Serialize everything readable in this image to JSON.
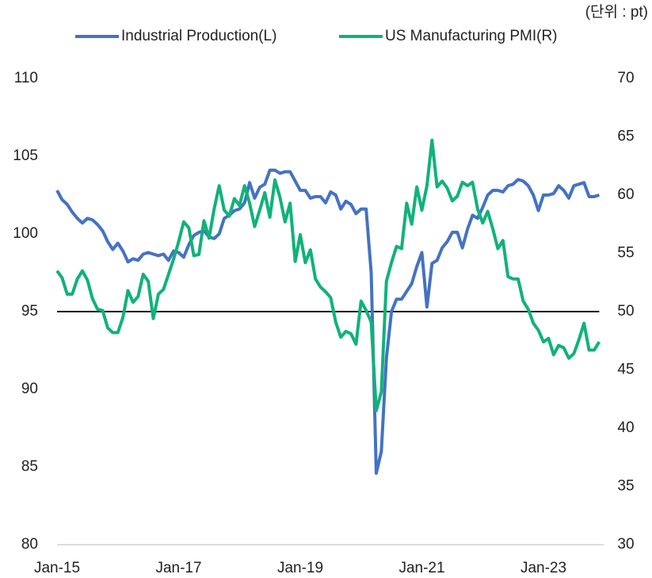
{
  "chart_data": {
    "type": "line",
    "annotation": "(단위 : pt)",
    "categories": [
      "Jan-15",
      null,
      null,
      null,
      null,
      null,
      null,
      null,
      null,
      null,
      null,
      null,
      null,
      null,
      null,
      null,
      null,
      null,
      null,
      null,
      null,
      null,
      null,
      null,
      "Jan-17",
      null,
      null,
      null,
      null,
      null,
      null,
      null,
      null,
      null,
      null,
      null,
      null,
      null,
      null,
      null,
      null,
      null,
      null,
      null,
      null,
      null,
      null,
      null,
      "Jan-19",
      null,
      null,
      null,
      null,
      null,
      null,
      null,
      null,
      null,
      null,
      null,
      null,
      null,
      null,
      null,
      null,
      null,
      null,
      null,
      null,
      null,
      null,
      null,
      "Jan-21",
      null,
      null,
      null,
      null,
      null,
      null,
      null,
      null,
      null,
      null,
      null,
      null,
      null,
      null,
      null,
      null,
      null,
      null,
      null,
      null,
      null,
      null,
      null,
      "Jan-23",
      null,
      null,
      null,
      null,
      null,
      null,
      null,
      null,
      null,
      null,
      null
    ],
    "series": [
      {
        "name": "Industrial Production(L)",
        "color": "#4472c4",
        "axis": "y",
        "values": [
          102.8,
          102.2,
          101.9,
          101.4,
          101.0,
          100.7,
          101.0,
          100.9,
          100.6,
          100.2,
          99.5,
          99.0,
          99.4,
          98.9,
          98.2,
          98.4,
          98.3,
          98.7,
          98.8,
          98.7,
          98.6,
          98.7,
          98.3,
          98.9,
          98.8,
          98.5,
          99.3,
          99.9,
          100.1,
          100.2,
          99.8,
          99.7,
          100.0,
          101.0,
          101.2,
          101.5,
          101.6,
          102.0,
          103.3,
          102.3,
          103.0,
          103.2,
          104.1,
          104.1,
          103.9,
          104.0,
          104.0,
          103.4,
          102.8,
          102.8,
          102.3,
          102.4,
          102.4,
          102.0,
          102.7,
          102.5,
          101.6,
          102.1,
          101.9,
          101.3,
          101.6,
          101.6,
          97.5,
          84.6,
          86.0,
          92.0,
          95.0,
          95.8,
          95.8,
          96.3,
          96.8,
          97.9,
          98.8,
          95.3,
          98.1,
          98.3,
          99.1,
          99.5,
          100.1,
          100.1,
          99.1,
          100.3,
          101.2,
          101.0,
          101.7,
          102.5,
          102.8,
          102.8,
          102.7,
          103.1,
          103.2,
          103.5,
          103.4,
          103.1,
          102.5,
          101.5,
          102.5,
          102.5,
          102.6,
          103.1,
          102.8,
          102.3,
          103.1,
          103.2,
          103.3,
          102.4,
          102.4,
          102.5
        ]
      },
      {
        "name": "US Manufacturing PMI(R)",
        "color": "#10b27a",
        "axis": "y2",
        "values": [
          53.5,
          52.9,
          51.5,
          51.5,
          52.8,
          53.5,
          52.7,
          51.1,
          50.2,
          50.1,
          48.6,
          48.2,
          48.2,
          49.5,
          51.8,
          50.8,
          51.3,
          53.2,
          52.6,
          49.4,
          51.5,
          51.9,
          53.2,
          54.5,
          56.0,
          57.7,
          57.2,
          54.8,
          54.9,
          57.8,
          56.3,
          58.8,
          60.8,
          58.7,
          58.2,
          59.7,
          59.1,
          60.8,
          59.3,
          57.3,
          58.7,
          60.2,
          58.1,
          61.3,
          59.8,
          57.7,
          59.3,
          54.3,
          56.6,
          54.2,
          55.3,
          52.8,
          52.1,
          51.7,
          51.2,
          49.1,
          47.8,
          48.3,
          48.1,
          47.2,
          50.9,
          50.1,
          49.1,
          41.5,
          43.1,
          52.6,
          54.2,
          55.6,
          55.4,
          59.3,
          57.5,
          60.7,
          58.7,
          60.8,
          64.7,
          60.7,
          61.2,
          60.6,
          59.5,
          59.9,
          61.1,
          60.8,
          61.1,
          58.8,
          57.6,
          58.6,
          57.1,
          55.4,
          56.1,
          53.0,
          52.8,
          52.8,
          50.9,
          50.2,
          49.0,
          48.4,
          47.4,
          47.7,
          46.3,
          47.1,
          46.9,
          46.0,
          46.4,
          47.6,
          49.0,
          46.7,
          46.7,
          47.4
        ]
      }
    ],
    "reference_line": 95,
    "ylim": [
      80,
      110
    ],
    "yticks": [
      80,
      85,
      90,
      95,
      100,
      105,
      110
    ],
    "y2lim": [
      30,
      70
    ],
    "y2ticks": [
      30,
      35,
      40,
      45,
      50,
      55,
      60,
      65,
      70
    ],
    "legend": "top"
  }
}
